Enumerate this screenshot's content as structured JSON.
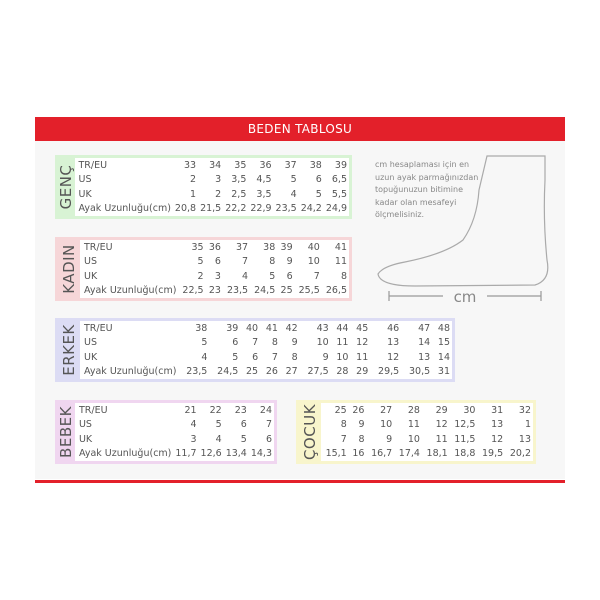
{
  "title": "BEDEN TABLOSU",
  "row_labels": [
    "TR/EU",
    "US",
    "UK",
    "Ayak Uzunluğu(cm)"
  ],
  "colors": {
    "accent": "#e3202a",
    "genc": "#d8f3d4",
    "kadin": "#f6d6d8",
    "erkek": "#dcdcf4",
    "bebek": "#f0d6f0",
    "cocuk": "#f8f5cc"
  },
  "tables": [
    {
      "name": "GENÇ",
      "rows": [
        [
          "33",
          "34",
          "35",
          "36",
          "37",
          "38",
          "39"
        ],
        [
          "2",
          "3",
          "3,5",
          "4,5",
          "5",
          "6",
          "6,5"
        ],
        [
          "1",
          "2",
          "2,5",
          "3,5",
          "4",
          "5",
          "5,5"
        ],
        [
          "20,8",
          "21,5",
          "22,2",
          "22,9",
          "23,5",
          "24,2",
          "24,9"
        ]
      ]
    },
    {
      "name": "KADIN",
      "rows": [
        [
          "35",
          "36",
          "37",
          "38",
          "39",
          "40",
          "41"
        ],
        [
          "5",
          "6",
          "7",
          "8",
          "9",
          "10",
          "11"
        ],
        [
          "2",
          "3",
          "4",
          "5",
          "6",
          "7",
          "8"
        ],
        [
          "22,5",
          "23",
          "23,5",
          "24,5",
          "25",
          "25,5",
          "26,5"
        ]
      ]
    },
    {
      "name": "ERKEK",
      "rows": [
        [
          "38",
          "39",
          "40",
          "41",
          "42",
          "43",
          "44",
          "45",
          "46",
          "47",
          "48"
        ],
        [
          "5",
          "6",
          "7",
          "8",
          "9",
          "10",
          "11",
          "12",
          "13",
          "14",
          "15"
        ],
        [
          "4",
          "5",
          "6",
          "7",
          "8",
          "9",
          "10",
          "11",
          "12",
          "13",
          "14"
        ],
        [
          "23,5",
          "24,5",
          "25",
          "26",
          "27",
          "27,5",
          "28",
          "29",
          "29,5",
          "30,5",
          "31"
        ]
      ]
    },
    {
      "name": "BEBEK",
      "rows": [
        [
          "21",
          "22",
          "23",
          "24"
        ],
        [
          "4",
          "5",
          "6",
          "7"
        ],
        [
          "3",
          "4",
          "5",
          "6"
        ],
        [
          "11,7",
          "12,6",
          "13,4",
          "14,3"
        ]
      ]
    },
    {
      "name": "ÇOCUK",
      "rows": [
        [
          "25",
          "26",
          "27",
          "28",
          "29",
          "30",
          "31",
          "32"
        ],
        [
          "8",
          "9",
          "10",
          "11",
          "12",
          "12,5",
          "13",
          "1"
        ],
        [
          "7",
          "8",
          "9",
          "10",
          "11",
          "11,5",
          "12",
          "13"
        ],
        [
          "15,1",
          "16",
          "16,7",
          "17,4",
          "18,1",
          "18,8",
          "19,5",
          "20,2"
        ]
      ]
    }
  ],
  "note": [
    "cm hesaplaması için en",
    "uzun ayak parmağınızdan",
    "topuğunuzun bitimine",
    "kadar olan mesafeyi",
    "ölçmelisiniz."
  ],
  "unit_label": "cm"
}
